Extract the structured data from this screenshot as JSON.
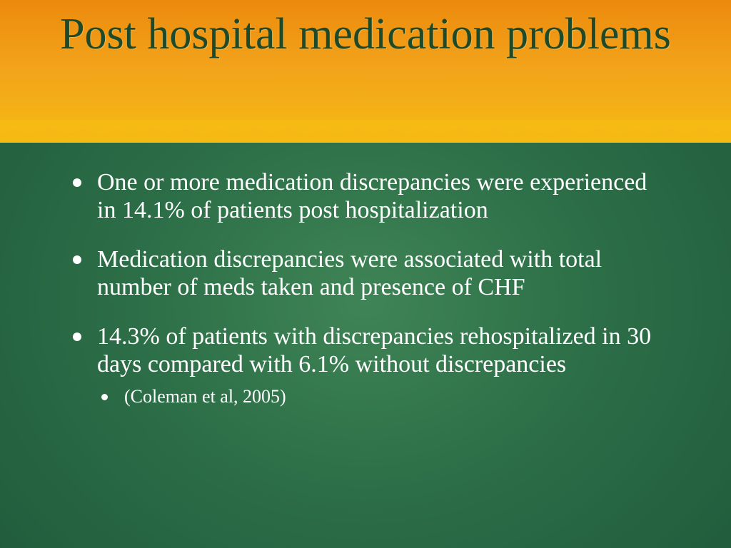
{
  "slide": {
    "title": "Post hospital medication problems",
    "bullets": [
      "One or more medication discrepancies were experienced in 14.1% of  patients post hospitalization",
      "Medication discrepancies were associated with total number of meds taken and presence of CHF",
      "14.3% of patients with discrepancies rehospitalized in 30 days compared with 6.1% without discrepancies"
    ],
    "sub_bullets": [
      "(Coleman et al,  2005)"
    ]
  },
  "colors": {
    "title_band_top": "#ec8a0d",
    "title_band_bottom": "#f5bb14",
    "background_green": "#2c6e47",
    "title_text": "#1e4a2a",
    "body_text": "#ffffff"
  }
}
